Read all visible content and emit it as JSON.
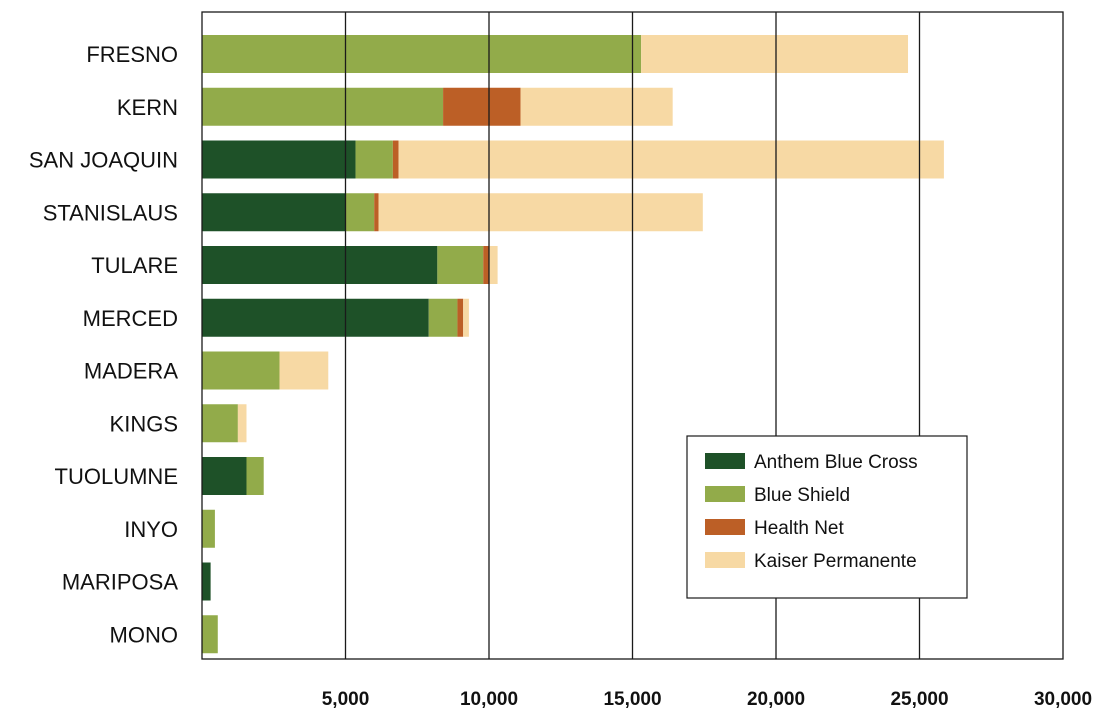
{
  "chart_data": {
    "type": "bar",
    "orientation": "horizontal",
    "stacked": true,
    "categories": [
      "FRESNO",
      "KERN",
      "SAN JOAQUIN",
      "STANISLAUS",
      "TULARE",
      "MERCED",
      "MADERA",
      "KINGS",
      "TUOLUMNE",
      "INYO",
      "MARIPOSA",
      "MONO"
    ],
    "series": [
      {
        "name": "Anthem Blue Cross",
        "color": "#1e5128",
        "values": [
          0,
          0,
          5350,
          5000,
          8200,
          7900,
          0,
          0,
          1550,
          0,
          300,
          0
        ]
      },
      {
        "name": "Blue Shield",
        "color": "#92ab4a",
        "values": [
          15300,
          8400,
          1300,
          1000,
          1600,
          1000,
          2700,
          1250,
          600,
          450,
          0,
          550
        ]
      },
      {
        "name": "Health Net",
        "color": "#bc5f26",
        "values": [
          0,
          2700,
          200,
          150,
          200,
          200,
          0,
          0,
          0,
          0,
          0,
          0
        ]
      },
      {
        "name": "Kaiser Permanente",
        "color": "#f7d9a4",
        "values": [
          9300,
          5300,
          19000,
          11300,
          300,
          200,
          1700,
          300,
          0,
          0,
          0,
          0
        ]
      }
    ],
    "xlim": [
      0,
      30000
    ],
    "xticks": [
      5000,
      10000,
      15000,
      20000,
      25000,
      30000
    ],
    "xtick_labels": [
      "5,000",
      "10,000",
      "15,000",
      "20,000",
      "25,000",
      "30,000"
    ],
    "grid": "vertical",
    "legend_position": "lower-right",
    "title": "",
    "xlabel": "",
    "ylabel": ""
  },
  "legend": {
    "items": [
      {
        "label": "Anthem Blue Cross",
        "color": "#1e5128"
      },
      {
        "label": "Blue Shield",
        "color": "#92ab4a"
      },
      {
        "label": "Health Net",
        "color": "#bc5f26"
      },
      {
        "label": "Kaiser Permanente",
        "color": "#f7d9a4"
      }
    ]
  }
}
